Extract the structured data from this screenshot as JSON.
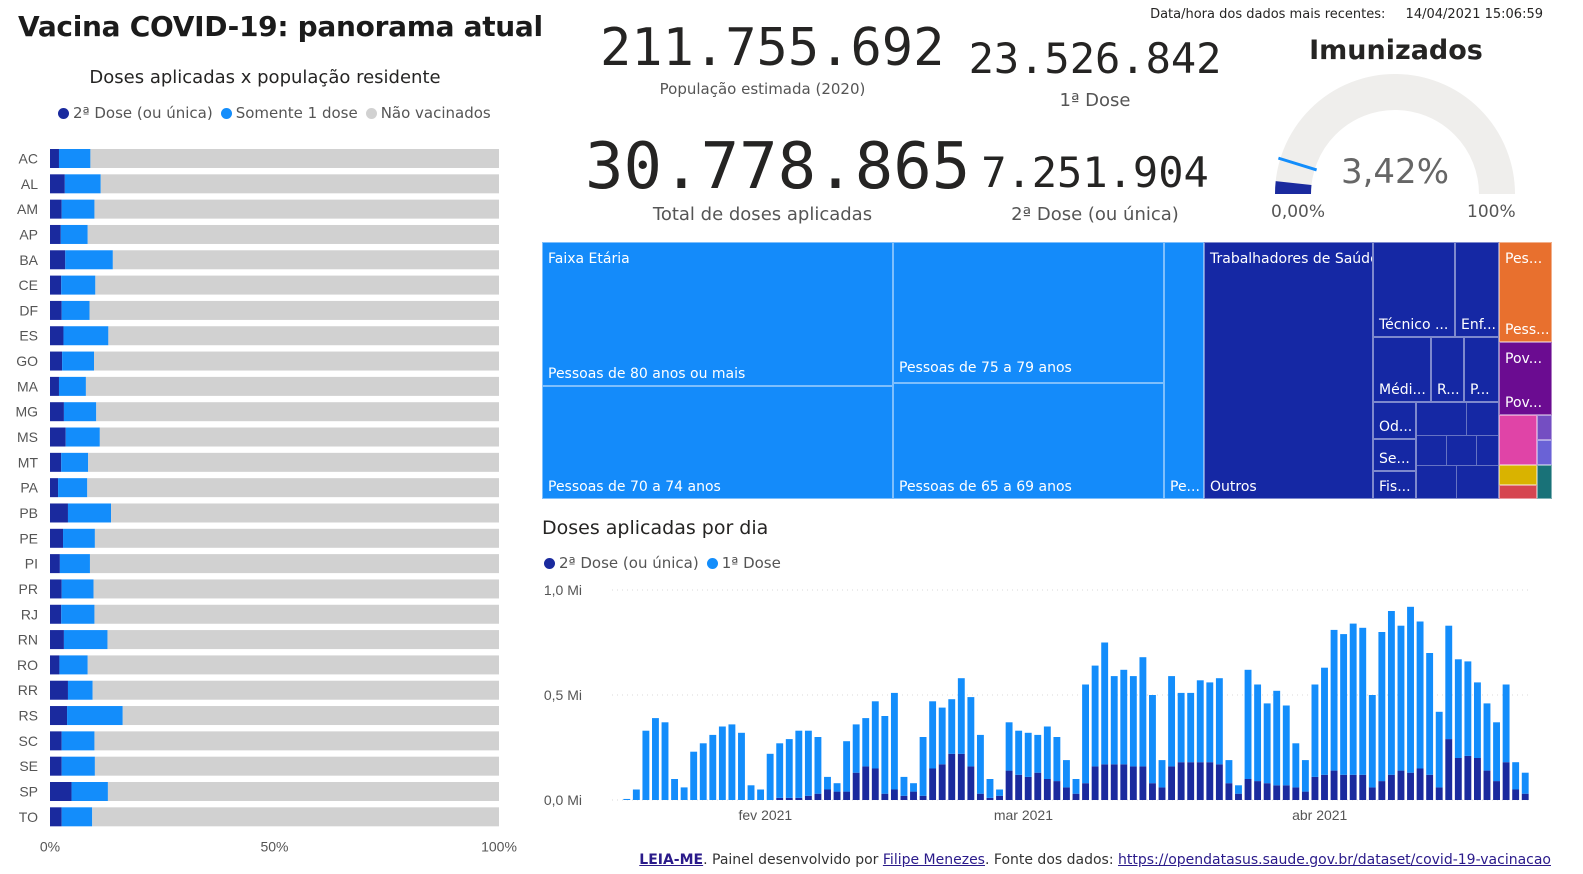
{
  "page_title": "Vacina COVID-19: panorama atual",
  "timestamp": {
    "label": "Data/hora dos dados mais recentes:",
    "value": "14/04/2021 15:06:59"
  },
  "colors": {
    "dose2": "#1a2a9e",
    "dose1": "#138dfb",
    "none": "#d1d1d1",
    "treemap_blue": "#148bfa",
    "treemap_dark": "#1528a4"
  },
  "kpis": {
    "populacao": {
      "value": "211.755.692",
      "label": "População estimada (2020)"
    },
    "total_doses": {
      "value": "30.778.865",
      "label": "Total de doses aplicadas"
    },
    "dose1": {
      "value": "23.526.842",
      "label": "1ª Dose"
    },
    "dose2": {
      "value": "7.251.904",
      "label": "2ª Dose (ou única)"
    }
  },
  "gauge": {
    "title": "Imunizados",
    "value_text": "3,42%",
    "value": 0.0342,
    "min_label": "0,00%",
    "max_label": "100%"
  },
  "treemap": {
    "faixa_header": "Faixa Etária",
    "trab_header": "Trabalhadores de Saúde",
    "cells": {
      "p80": "Pessoas de 80 anos ou mais",
      "p75": "Pessoas de 75 a 79 anos",
      "p70": "Pessoas de 70 a 74 anos",
      "p65": "Pessoas de 65 a 69 anos",
      "pe": "Pe...",
      "outros": "Outros",
      "tecnico": "Técnico ...",
      "enf": "Enf...",
      "medi": "Médi...",
      "r": "R...",
      "p": "P...",
      "od": "Od...",
      "se": "Se...",
      "fis": "Fis...",
      "pess1": "Pes...",
      "pess2": "Pess...",
      "pov1": "Pov...",
      "pov2": "Pov..."
    }
  },
  "chart_data": [
    {
      "type": "bar",
      "orientation": "horizontal",
      "stacked": true,
      "title": "Doses aplicadas x população residente",
      "categories": [
        "AC",
        "AL",
        "AM",
        "AP",
        "BA",
        "CE",
        "DF",
        "ES",
        "GO",
        "MA",
        "MG",
        "MS",
        "MT",
        "PA",
        "PB",
        "PE",
        "PI",
        "PR",
        "RJ",
        "RN",
        "RO",
        "RR",
        "RS",
        "SC",
        "SE",
        "SP",
        "TO"
      ],
      "series": [
        {
          "name": "2ª Dose (ou única)",
          "color": "#1a2a9e",
          "values": [
            2.0,
            3.3,
            2.6,
            2.4,
            3.4,
            2.5,
            2.6,
            3.0,
            2.7,
            2.0,
            3.1,
            3.5,
            2.5,
            1.8,
            4.0,
            2.9,
            2.2,
            2.6,
            2.5,
            3.1,
            2.1,
            4.0,
            3.8,
            2.6,
            2.6,
            4.8,
            2.6
          ]
        },
        {
          "name": "Somente 1 dose",
          "color": "#138dfb",
          "values": [
            7.0,
            8.0,
            7.3,
            6.0,
            10.6,
            7.6,
            6.2,
            10.0,
            7.1,
            6.0,
            7.2,
            7.6,
            6.0,
            6.5,
            9.6,
            7.1,
            6.7,
            7.1,
            7.4,
            9.7,
            6.3,
            5.5,
            12.4,
            7.3,
            7.4,
            8.1,
            6.8
          ]
        },
        {
          "name": "Não vacinados",
          "color": "#d1d1d1",
          "values": [
            91.0,
            88.7,
            90.1,
            91.6,
            86.0,
            89.9,
            91.2,
            87.0,
            90.2,
            92.0,
            89.7,
            88.9,
            91.5,
            91.7,
            86.4,
            90.0,
            91.1,
            90.3,
            90.1,
            87.2,
            91.6,
            90.5,
            83.8,
            90.1,
            90.0,
            87.1,
            90.6
          ]
        }
      ],
      "x_ticks": [
        "0%",
        "50%",
        "100%"
      ],
      "xlim": [
        0,
        100
      ],
      "legend": "top"
    },
    {
      "type": "bar",
      "stacked": true,
      "title": "Doses aplicadas por dia",
      "y_ticks": [
        "1,0 Mi",
        "0,5 Mi",
        "0,0 Mi"
      ],
      "ylim": [
        0,
        1.0
      ],
      "x_ticks": [
        "fev 2021",
        "mar 2021",
        "abr 2021"
      ],
      "legend": "top-left",
      "series": [
        {
          "name": "2ª Dose (ou única)",
          "color": "#1a2a9e",
          "values": [
            0,
            0,
            0,
            0,
            0,
            0,
            0,
            0,
            0,
            0,
            0,
            0,
            0,
            0,
            0,
            0,
            0.01,
            0.01,
            0.01,
            0.02,
            0.03,
            0.05,
            0.04,
            0.04,
            0.13,
            0.16,
            0.15,
            0.03,
            0.05,
            0.02,
            0.04,
            0.02,
            0.15,
            0.17,
            0.22,
            0.22,
            0.16,
            0.03,
            0.01,
            0.02,
            0.14,
            0.12,
            0.11,
            0.13,
            0.1,
            0.09,
            0.06,
            0.03,
            0.08,
            0.16,
            0.17,
            0.17,
            0.17,
            0.16,
            0.16,
            0.08,
            0.06,
            0.16,
            0.18,
            0.18,
            0.18,
            0.18,
            0.17,
            0.08,
            0.03,
            0.1,
            0.09,
            0.08,
            0.07,
            0.07,
            0.06,
            0.04,
            0.11,
            0.12,
            0.14,
            0.12,
            0.12,
            0.12,
            0.06,
            0.09,
            0.12,
            0.14,
            0.13,
            0.15,
            0.12,
            0.06,
            0.29,
            0.2,
            0.21,
            0.2,
            0.14,
            0.09,
            0.18,
            0.05,
            0.03
          ]
        },
        {
          "name": "1ª Dose",
          "color": "#138dfb",
          "values": [
            0.005,
            0.05,
            0.33,
            0.39,
            0.37,
            0.1,
            0.06,
            0.23,
            0.27,
            0.31,
            0.35,
            0.36,
            0.32,
            0.07,
            0.05,
            0.22,
            0.26,
            0.28,
            0.32,
            0.31,
            0.27,
            0.06,
            0.04,
            0.24,
            0.23,
            0.23,
            0.32,
            0.37,
            0.46,
            0.09,
            0.04,
            0.28,
            0.32,
            0.27,
            0.26,
            0.36,
            0.33,
            0.28,
            0.09,
            0.03,
            0.23,
            0.21,
            0.21,
            0.18,
            0.25,
            0.21,
            0.13,
            0.07,
            0.47,
            0.48,
            0.58,
            0.42,
            0.45,
            0.43,
            0.52,
            0.42,
            0.13,
            0.43,
            0.33,
            0.33,
            0.39,
            0.38,
            0.41,
            0.11,
            0.04,
            0.52,
            0.46,
            0.38,
            0.45,
            0.38,
            0.21,
            0.15,
            0.44,
            0.51,
            0.67,
            0.67,
            0.72,
            0.7,
            0.44,
            0.71,
            0.78,
            0.69,
            0.79,
            0.7,
            0.58,
            0.36,
            0.54,
            0.47,
            0.45,
            0.36,
            0.32,
            0.28,
            0.37,
            0.13,
            0.1
          ]
        }
      ]
    }
  ],
  "footer": {
    "leia_me": "LEIA-ME",
    "text1": ". Painel desenvolvido por ",
    "author": "Filipe Menezes",
    "text2": ". Fonte dos dados: ",
    "url": "https://opendatasus.saude.gov.br/dataset/covid-19-vacinacao"
  }
}
